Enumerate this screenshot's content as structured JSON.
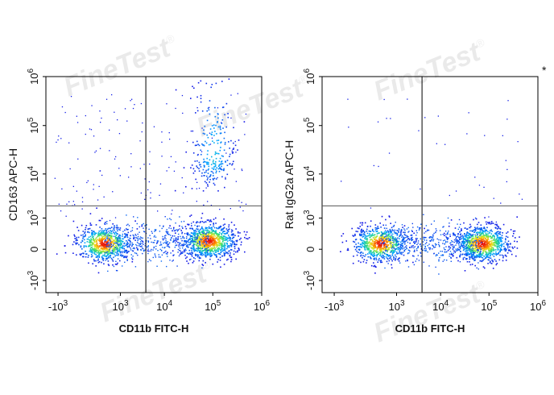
{
  "watermark": {
    "text": "FineTest",
    "mark": "®"
  },
  "corner_mark": "*",
  "chart_data": [
    {
      "type": "scatter",
      "title": "",
      "xlabel": "CD11b FITC-H",
      "ylabel": "CD163 APC-H",
      "x_scale": "biexponential",
      "y_scale": "biexponential",
      "x_ticks": [
        {
          "value": -1000,
          "base": "-10",
          "exp": "3"
        },
        {
          "value": 1000,
          "base": "10",
          "exp": "3"
        },
        {
          "value": 10000,
          "base": "10",
          "exp": "4"
        },
        {
          "value": 100000,
          "base": "10",
          "exp": "5"
        },
        {
          "value": 1000000,
          "base": "10",
          "exp": "6"
        }
      ],
      "y_ticks": [
        {
          "value": 1000000,
          "base": "10",
          "exp": "6"
        },
        {
          "value": 100000,
          "base": "10",
          "exp": "5"
        },
        {
          "value": 10000,
          "base": "10",
          "exp": "4"
        },
        {
          "value": 1000,
          "base": "10",
          "exp": "3"
        },
        {
          "value": 0,
          "base": "0",
          "exp": ""
        },
        {
          "value": -1000,
          "base": "-10",
          "exp": "3"
        }
      ],
      "gates": {
        "x": 4000,
        "y": 2000
      },
      "populations": [
        {
          "name": "CD11b- CD163-",
          "x_center": 300,
          "y_center": 100,
          "density": "high"
        },
        {
          "name": "CD11b+ CD163-",
          "x_center": 80000,
          "y_center": 150,
          "density": "very high"
        },
        {
          "name": "CD11b+ CD163+",
          "x_center": 100000,
          "y_center": 20000,
          "density": "low"
        }
      ]
    },
    {
      "type": "scatter",
      "title": "",
      "xlabel": "CD11b FITC-H",
      "ylabel": "Rat IgG2a APC-H",
      "x_scale": "biexponential",
      "y_scale": "biexponential",
      "x_ticks": [
        {
          "value": -1000,
          "base": "-10",
          "exp": "3"
        },
        {
          "value": 1000,
          "base": "10",
          "exp": "3"
        },
        {
          "value": 10000,
          "base": "10",
          "exp": "4"
        },
        {
          "value": 100000,
          "base": "10",
          "exp": "5"
        },
        {
          "value": 1000000,
          "base": "10",
          "exp": "6"
        }
      ],
      "y_ticks": [
        {
          "value": 1000000,
          "base": "10",
          "exp": "6"
        },
        {
          "value": 100000,
          "base": "10",
          "exp": "5"
        },
        {
          "value": 10000,
          "base": "10",
          "exp": "4"
        },
        {
          "value": 1000,
          "base": "10",
          "exp": "3"
        },
        {
          "value": 0,
          "base": "0",
          "exp": ""
        },
        {
          "value": -1000,
          "base": "-10",
          "exp": "3"
        }
      ],
      "gates": {
        "x": 4000,
        "y": 2000
      },
      "populations": [
        {
          "name": "CD11b- IgG2a-",
          "x_center": 300,
          "y_center": 100,
          "density": "high"
        },
        {
          "name": "CD11b+ IgG2a-",
          "x_center": 70000,
          "y_center": 100,
          "density": "very high"
        }
      ]
    }
  ]
}
